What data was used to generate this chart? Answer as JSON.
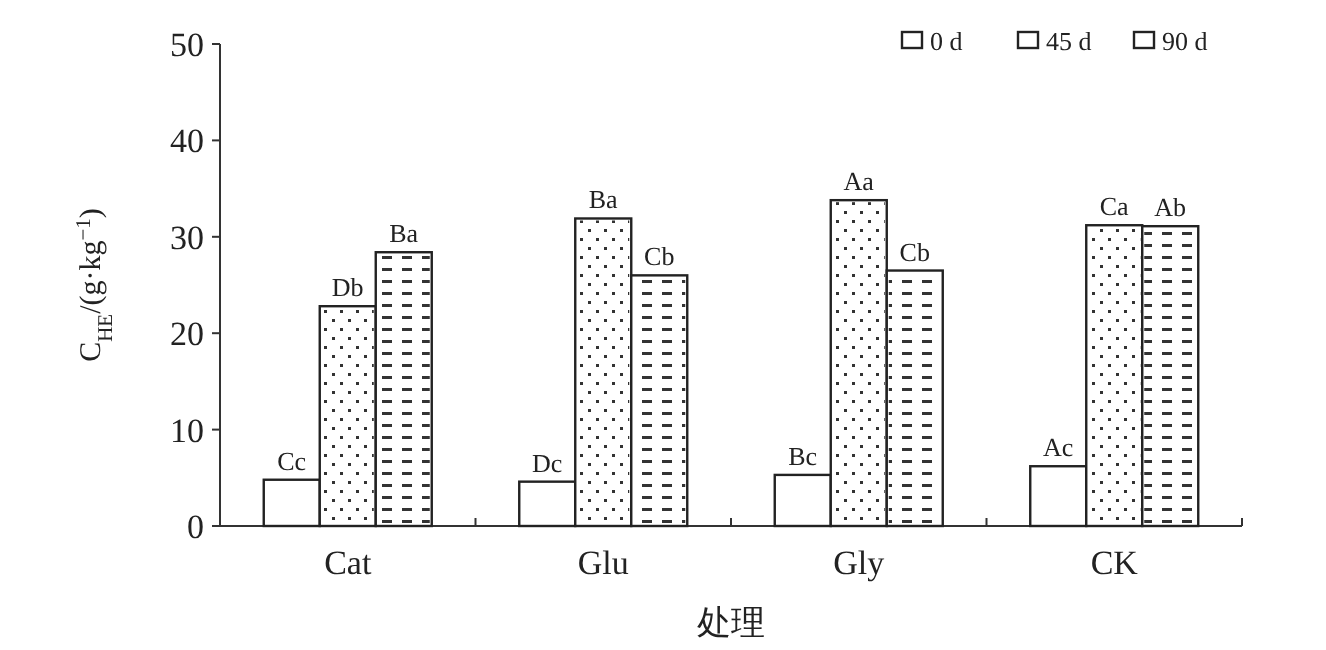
{
  "chart_data": {
    "type": "bar",
    "xlabel": "处理",
    "ylabel": "C$_{HE}$/(g·kg$^{−1}$)",
    "categories": [
      "Cat",
      "Glu",
      "Gly",
      "CK"
    ],
    "series": [
      {
        "name": "0 d",
        "color": "#ffffff",
        "values": [
          4.8,
          4.6,
          5.3,
          6.2
        ],
        "value_labels": [
          "Cc",
          "Dc",
          "Bc",
          "Ac"
        ]
      },
      {
        "name": "45 d",
        "color": "#ffffff",
        "values": [
          22.8,
          31.9,
          33.8,
          31.2
        ],
        "value_labels": [
          "Db",
          "Ba",
          "Aa",
          "Ca"
        ]
      },
      {
        "name": "90 d",
        "color": "#ffffff",
        "values": [
          28.4,
          26.0,
          26.5,
          31.1
        ],
        "value_labels": [
          "Ba",
          "Cb",
          "Cb",
          "Ab"
        ]
      }
    ],
    "ylim": [
      0,
      50
    ],
    "yticks": [
      0,
      10,
      20,
      30,
      40,
      50
    ],
    "legend": "top right"
  }
}
